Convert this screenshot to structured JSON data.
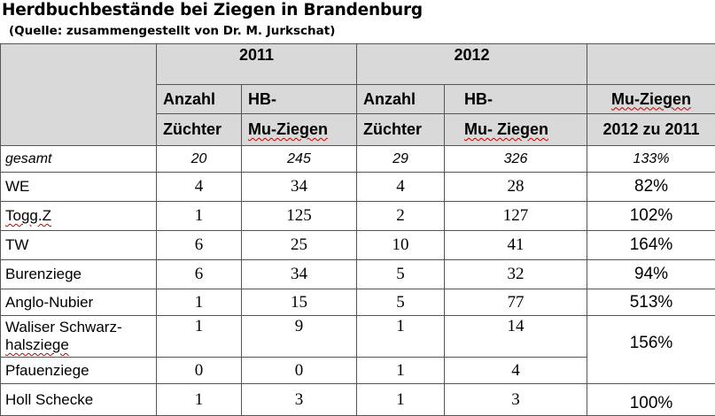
{
  "title": "Herdbuchbestände bei Ziegen in Brandenburg",
  "source": "(Quelle: zusammengestellt von Dr. M. Jurkschat)",
  "header": {
    "year_2011": "2011",
    "year_2012": "2012",
    "anzahl_2011": "Anzahl",
    "hb_2011": "HB-",
    "anzahl_2012": "Anzahl",
    "hb_2012": "HB-",
    "mu_title": "Mu-Ziegen",
    "zuechter_2011": "Züchter",
    "muziegen_2011": "Mu-Ziegen",
    "zuechter_2012": "Züchter",
    "muziegen_2012": "Mu- Ziegen",
    "compare": "2012 zu 2011"
  },
  "total": {
    "label": "gesamt",
    "z2011": "20",
    "hb2011": "245",
    "z2012": "29",
    "hb2012": "326",
    "pct": "133%"
  },
  "rows": [
    {
      "label": "WE",
      "z2011": "4",
      "hb2011": "34",
      "z2012": "4",
      "hb2012": "28",
      "pct": "82%"
    },
    {
      "label": "Togg.Z",
      "z2011": "1",
      "hb2011": "125",
      "z2012": "2",
      "hb2012": "127",
      "pct": "102%"
    },
    {
      "label": "TW",
      "z2011": "6",
      "hb2011": "25",
      "z2012": "10",
      "hb2012": "41",
      "pct": "164%"
    },
    {
      "label": "Burenziege",
      "z2011": "6",
      "hb2011": "34",
      "z2012": "5",
      "hb2012": "32",
      "pct": "94%"
    },
    {
      "label": "Anglo-Nubier",
      "z2011": "1",
      "hb2011": "15",
      "z2012": "5",
      "hb2012": "77",
      "pct": "513%"
    },
    {
      "label": "Waliser Schwarz-halsziege",
      "label_line1": "Waliser Schwarz-",
      "label_line2": "halsziege",
      "z2011": "1",
      "hb2011": "9",
      "z2012": "1",
      "hb2012": "14",
      "pct": "156%"
    },
    {
      "label": "Pfauenziege",
      "z2011": "0",
      "hb2011": "0",
      "z2012": "1",
      "hb2012": "4",
      "pct": ""
    },
    {
      "label": "Holl Schecke",
      "z2011": "1",
      "hb2011": "3",
      "z2012": "1",
      "hb2012": "3",
      "pct": "100%"
    }
  ]
}
